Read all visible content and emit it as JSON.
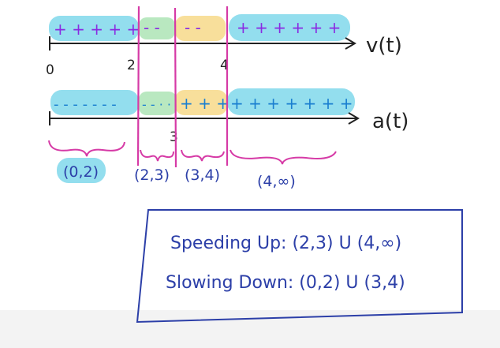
{
  "velocity_line": {
    "label": "v(t)",
    "tick_labels": [
      "0",
      "2",
      "4"
    ],
    "segments": [
      {
        "signs": "+ + + + +",
        "color": "#6fd3e8"
      },
      {
        "signs": "- -",
        "color": "#a8e2b0"
      },
      {
        "signs": "- -",
        "color": "#f7d98a"
      },
      {
        "signs": "+ + + + + +",
        "color": "#6fd3e8"
      }
    ],
    "sign_color": "#8a2be2"
  },
  "acceleration_line": {
    "label": "a(t)",
    "tick_labels": [
      "3"
    ],
    "segments": [
      {
        "signs": "- - - - - - -",
        "color": "#6fd3e8"
      },
      {
        "signs": "- - · ·",
        "color": "#a8e2b0"
      },
      {
        "signs": "+ + +",
        "color": "#f7d98a"
      },
      {
        "signs": "+ + + + + + +",
        "color": "#6fd3e8"
      }
    ],
    "sign_color": "#1a7fd0"
  },
  "intervals": [
    "(0,2)",
    "(2,3)",
    "(3,4)",
    "(4,∞)"
  ],
  "summary": {
    "speeding_up": "Speeding Up: (2,3) U (4,∞)",
    "slowing_down": "Slowing Down: (0,2) U (3,4)"
  },
  "colors": {
    "divider": "#d63aa6",
    "ink": "#2c3fa8",
    "axis": "#222222",
    "highlight": "#6fd3e8"
  }
}
